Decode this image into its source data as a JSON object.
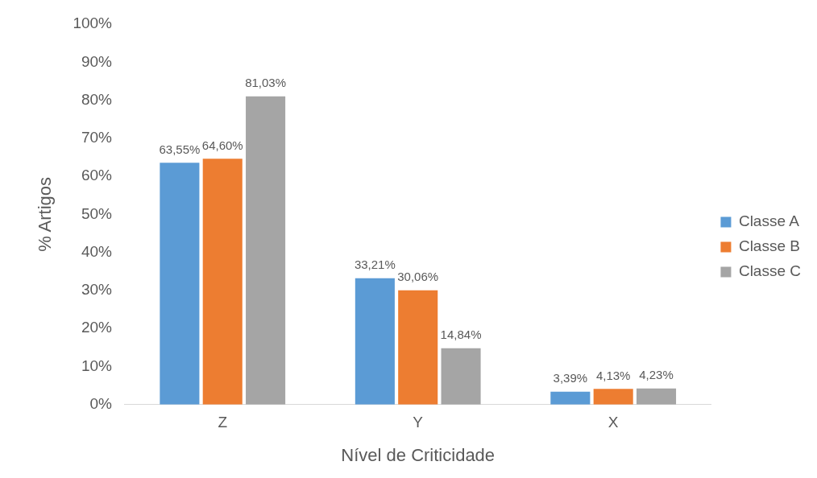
{
  "chart_data": {
    "type": "bar",
    "xlabel": "Nível de Criticidade",
    "ylabel": "% Artigos",
    "categories": [
      "Z",
      "Y",
      "X"
    ],
    "series": [
      {
        "name": "Classe A",
        "color": "#5b9bd5",
        "values": [
          63.55,
          33.21,
          3.39
        ],
        "value_labels": [
          "63,55%",
          "33,21%",
          "3,39%"
        ]
      },
      {
        "name": "Classe B",
        "color": "#ed7d31",
        "values": [
          64.6,
          30.06,
          4.13
        ],
        "value_labels": [
          "64,60%",
          "30,06%",
          "4,13%"
        ]
      },
      {
        "name": "Classe C",
        "color": "#a5a5a5",
        "values": [
          81.03,
          14.84,
          4.23
        ],
        "value_labels": [
          "81,03%",
          "14,84%",
          "4,23%"
        ]
      }
    ],
    "ylim": [
      0,
      100
    ],
    "yticks": [
      {
        "value": 0,
        "label": "0%"
      },
      {
        "value": 10,
        "label": "10%"
      },
      {
        "value": 20,
        "label": "20%"
      },
      {
        "value": 30,
        "label": "30%"
      },
      {
        "value": 40,
        "label": "40%"
      },
      {
        "value": 50,
        "label": "50%"
      },
      {
        "value": 60,
        "label": "60%"
      },
      {
        "value": 70,
        "label": "70%"
      },
      {
        "value": 80,
        "label": "80%"
      },
      {
        "value": 90,
        "label": "90%"
      },
      {
        "value": 100,
        "label": "100%"
      }
    ],
    "grid": false,
    "legend": "right"
  }
}
